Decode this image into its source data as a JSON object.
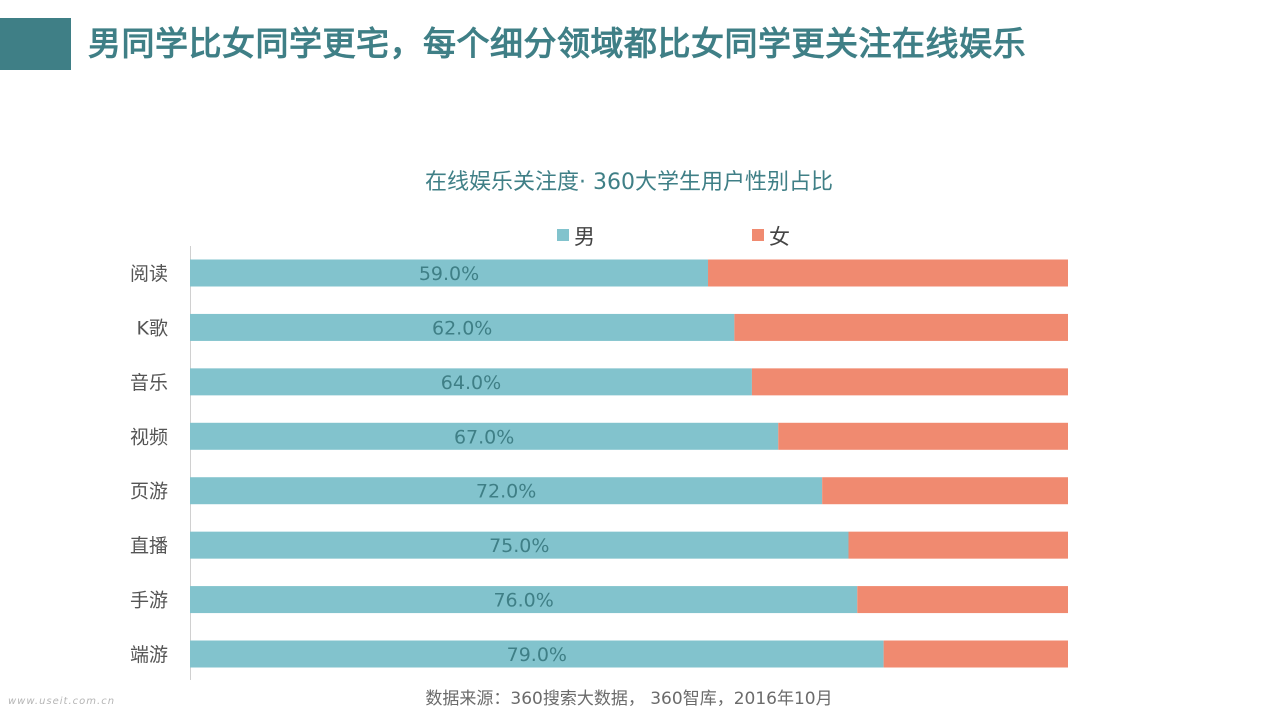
{
  "slide": {
    "title": "男同学比女同学更宅，每个细分领域都比女同学更关注在线娱乐",
    "source": "数据来源：360搜索大数据， 360智库，2016年10月",
    "watermark": "www.useit.com.cn"
  },
  "colors": {
    "accent": "#3f7f86",
    "male": "#82c3cd",
    "female": "#f08a70",
    "axis": "#d0d0d0",
    "label_text": "#3f7f86"
  },
  "chart_data": {
    "type": "bar",
    "orientation": "horizontal",
    "stacked": true,
    "title": "在线娱乐关注度· 360大学生用户性别占比",
    "categories": [
      "阅读",
      "K歌",
      "音乐",
      "视频",
      "页游",
      "直播",
      "手游",
      "端游"
    ],
    "series": [
      {
        "name": "男",
        "color": "#82c3cd",
        "values": [
          59.0,
          62.0,
          64.0,
          67.0,
          72.0,
          75.0,
          76.0,
          79.0
        ],
        "labels": [
          "59.0%",
          "62.0%",
          "64.0%",
          "67.0%",
          "72.0%",
          "75.0%",
          "76.0%",
          "79.0%"
        ]
      },
      {
        "name": "女",
        "color": "#f08a70",
        "values": [
          41.0,
          38.0,
          36.0,
          33.0,
          28.0,
          25.0,
          24.0,
          21.0
        ]
      }
    ],
    "xlim": [
      0,
      100
    ],
    "legend_position": "top",
    "grid": false
  }
}
